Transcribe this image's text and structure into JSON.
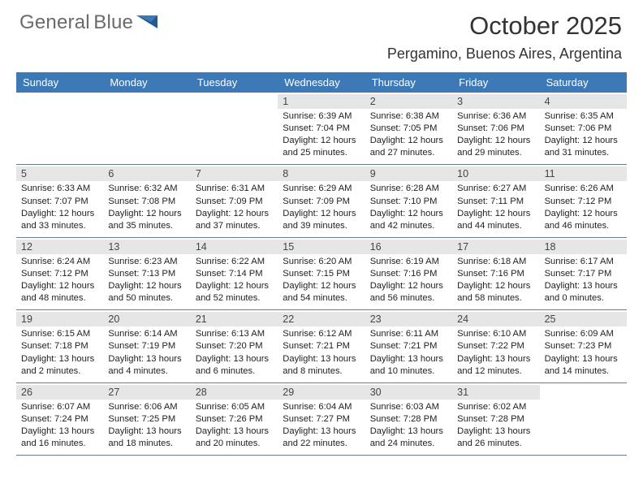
{
  "brand": {
    "word1": "General",
    "word2": "Blue"
  },
  "title": "October 2025",
  "location": "Pergamino, Buenos Aires, Argentina",
  "dayNames": [
    "Sunday",
    "Monday",
    "Tuesday",
    "Wednesday",
    "Thursday",
    "Friday",
    "Saturday"
  ],
  "colors": {
    "headerBar": "#3c79b6",
    "dateStrip": "#e6e6e6",
    "weekBorder": "#6b7b8c"
  },
  "weeks": [
    [
      {
        "blank": true
      },
      {
        "blank": true
      },
      {
        "blank": true
      },
      {
        "num": "1",
        "sunrise": "Sunrise: 6:39 AM",
        "sunset": "Sunset: 7:04 PM",
        "day1": "Daylight: 12 hours",
        "day2": "and 25 minutes."
      },
      {
        "num": "2",
        "sunrise": "Sunrise: 6:38 AM",
        "sunset": "Sunset: 7:05 PM",
        "day1": "Daylight: 12 hours",
        "day2": "and 27 minutes."
      },
      {
        "num": "3",
        "sunrise": "Sunrise: 6:36 AM",
        "sunset": "Sunset: 7:06 PM",
        "day1": "Daylight: 12 hours",
        "day2": "and 29 minutes."
      },
      {
        "num": "4",
        "sunrise": "Sunrise: 6:35 AM",
        "sunset": "Sunset: 7:06 PM",
        "day1": "Daylight: 12 hours",
        "day2": "and 31 minutes."
      }
    ],
    [
      {
        "num": "5",
        "sunrise": "Sunrise: 6:33 AM",
        "sunset": "Sunset: 7:07 PM",
        "day1": "Daylight: 12 hours",
        "day2": "and 33 minutes."
      },
      {
        "num": "6",
        "sunrise": "Sunrise: 6:32 AM",
        "sunset": "Sunset: 7:08 PM",
        "day1": "Daylight: 12 hours",
        "day2": "and 35 minutes."
      },
      {
        "num": "7",
        "sunrise": "Sunrise: 6:31 AM",
        "sunset": "Sunset: 7:09 PM",
        "day1": "Daylight: 12 hours",
        "day2": "and 37 minutes."
      },
      {
        "num": "8",
        "sunrise": "Sunrise: 6:29 AM",
        "sunset": "Sunset: 7:09 PM",
        "day1": "Daylight: 12 hours",
        "day2": "and 39 minutes."
      },
      {
        "num": "9",
        "sunrise": "Sunrise: 6:28 AM",
        "sunset": "Sunset: 7:10 PM",
        "day1": "Daylight: 12 hours",
        "day2": "and 42 minutes."
      },
      {
        "num": "10",
        "sunrise": "Sunrise: 6:27 AM",
        "sunset": "Sunset: 7:11 PM",
        "day1": "Daylight: 12 hours",
        "day2": "and 44 minutes."
      },
      {
        "num": "11",
        "sunrise": "Sunrise: 6:26 AM",
        "sunset": "Sunset: 7:12 PM",
        "day1": "Daylight: 12 hours",
        "day2": "and 46 minutes."
      }
    ],
    [
      {
        "num": "12",
        "sunrise": "Sunrise: 6:24 AM",
        "sunset": "Sunset: 7:12 PM",
        "day1": "Daylight: 12 hours",
        "day2": "and 48 minutes."
      },
      {
        "num": "13",
        "sunrise": "Sunrise: 6:23 AM",
        "sunset": "Sunset: 7:13 PM",
        "day1": "Daylight: 12 hours",
        "day2": "and 50 minutes."
      },
      {
        "num": "14",
        "sunrise": "Sunrise: 6:22 AM",
        "sunset": "Sunset: 7:14 PM",
        "day1": "Daylight: 12 hours",
        "day2": "and 52 minutes."
      },
      {
        "num": "15",
        "sunrise": "Sunrise: 6:20 AM",
        "sunset": "Sunset: 7:15 PM",
        "day1": "Daylight: 12 hours",
        "day2": "and 54 minutes."
      },
      {
        "num": "16",
        "sunrise": "Sunrise: 6:19 AM",
        "sunset": "Sunset: 7:16 PM",
        "day1": "Daylight: 12 hours",
        "day2": "and 56 minutes."
      },
      {
        "num": "17",
        "sunrise": "Sunrise: 6:18 AM",
        "sunset": "Sunset: 7:16 PM",
        "day1": "Daylight: 12 hours",
        "day2": "and 58 minutes."
      },
      {
        "num": "18",
        "sunrise": "Sunrise: 6:17 AM",
        "sunset": "Sunset: 7:17 PM",
        "day1": "Daylight: 13 hours",
        "day2": "and 0 minutes."
      }
    ],
    [
      {
        "num": "19",
        "sunrise": "Sunrise: 6:15 AM",
        "sunset": "Sunset: 7:18 PM",
        "day1": "Daylight: 13 hours",
        "day2": "and 2 minutes."
      },
      {
        "num": "20",
        "sunrise": "Sunrise: 6:14 AM",
        "sunset": "Sunset: 7:19 PM",
        "day1": "Daylight: 13 hours",
        "day2": "and 4 minutes."
      },
      {
        "num": "21",
        "sunrise": "Sunrise: 6:13 AM",
        "sunset": "Sunset: 7:20 PM",
        "day1": "Daylight: 13 hours",
        "day2": "and 6 minutes."
      },
      {
        "num": "22",
        "sunrise": "Sunrise: 6:12 AM",
        "sunset": "Sunset: 7:21 PM",
        "day1": "Daylight: 13 hours",
        "day2": "and 8 minutes."
      },
      {
        "num": "23",
        "sunrise": "Sunrise: 6:11 AM",
        "sunset": "Sunset: 7:21 PM",
        "day1": "Daylight: 13 hours",
        "day2": "and 10 minutes."
      },
      {
        "num": "24",
        "sunrise": "Sunrise: 6:10 AM",
        "sunset": "Sunset: 7:22 PM",
        "day1": "Daylight: 13 hours",
        "day2": "and 12 minutes."
      },
      {
        "num": "25",
        "sunrise": "Sunrise: 6:09 AM",
        "sunset": "Sunset: 7:23 PM",
        "day1": "Daylight: 13 hours",
        "day2": "and 14 minutes."
      }
    ],
    [
      {
        "num": "26",
        "sunrise": "Sunrise: 6:07 AM",
        "sunset": "Sunset: 7:24 PM",
        "day1": "Daylight: 13 hours",
        "day2": "and 16 minutes."
      },
      {
        "num": "27",
        "sunrise": "Sunrise: 6:06 AM",
        "sunset": "Sunset: 7:25 PM",
        "day1": "Daylight: 13 hours",
        "day2": "and 18 minutes."
      },
      {
        "num": "28",
        "sunrise": "Sunrise: 6:05 AM",
        "sunset": "Sunset: 7:26 PM",
        "day1": "Daylight: 13 hours",
        "day2": "and 20 minutes."
      },
      {
        "num": "29",
        "sunrise": "Sunrise: 6:04 AM",
        "sunset": "Sunset: 7:27 PM",
        "day1": "Daylight: 13 hours",
        "day2": "and 22 minutes."
      },
      {
        "num": "30",
        "sunrise": "Sunrise: 6:03 AM",
        "sunset": "Sunset: 7:28 PM",
        "day1": "Daylight: 13 hours",
        "day2": "and 24 minutes."
      },
      {
        "num": "31",
        "sunrise": "Sunrise: 6:02 AM",
        "sunset": "Sunset: 7:28 PM",
        "day1": "Daylight: 13 hours",
        "day2": "and 26 minutes."
      },
      {
        "blank": true
      }
    ]
  ]
}
